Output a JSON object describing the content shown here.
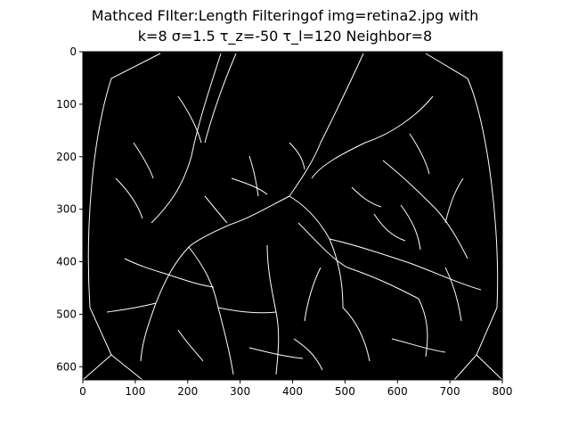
{
  "figure": {
    "title_line1": "Mathced FIlter:Length Filteringof img=retina2.jpg with",
    "title_line2": "k=8 σ=1.5 τ_z=-50 τ_l=120 Neighbor=8"
  },
  "image_extent": {
    "x": [
      0,
      800
    ],
    "y": [
      0,
      625
    ]
  },
  "axes": {
    "x_ticks": [
      0,
      100,
      200,
      300,
      400,
      500,
      600,
      700,
      800
    ],
    "y_ticks": [
      0,
      100,
      200,
      300,
      400,
      500,
      600
    ]
  },
  "colors": {
    "background": "#000000",
    "vessel": "#ffffff"
  }
}
